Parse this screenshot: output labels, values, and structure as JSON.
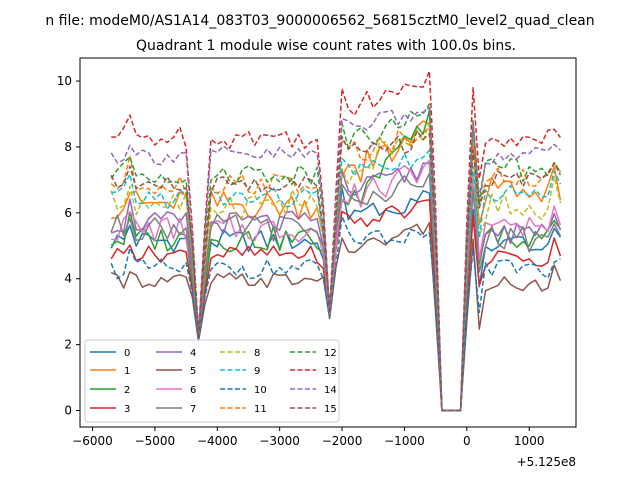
{
  "chart_data": {
    "type": "line",
    "suptitle": "n file: modeM0/AS1A14_083T03_9000006562_56815cztM0_level2_quad_clean",
    "title": "Quadrant 1 module wise count rates with 100.0s bins.",
    "xlabel": "",
    "ylabel": "",
    "offset_label": "+5.125e8",
    "xlim": [
      -6200,
      1750
    ],
    "ylim": [
      -0.5,
      10.7
    ],
    "xticks": [
      -6000,
      -5000,
      -4000,
      -3000,
      -2000,
      -1000,
      0,
      1000
    ],
    "xtick_labels": [
      "−6000",
      "−5000",
      "−4000",
      "−3000",
      "−2000",
      "−1000",
      "0",
      "1000"
    ],
    "yticks": [
      0,
      2,
      4,
      6,
      8,
      10
    ],
    "ytick_labels": [
      "0",
      "2",
      "4",
      "6",
      "8",
      "10"
    ],
    "legend_position": "lower-left",
    "x_start": -5700,
    "x_step": 100,
    "n_points": 73,
    "dips": [
      {
        "index": 14,
        "value": 2.1,
        "depth": 0.45
      },
      {
        "index": 35,
        "value": 2.8,
        "depth": 0.45
      }
    ],
    "gap": {
      "start_index": 53,
      "end_index": 56,
      "value": 0
    },
    "series": [
      {
        "name": "0",
        "color": "#1f77b4",
        "dash": false,
        "level": 5.15,
        "amplitude": 0.35,
        "post_level": 5.05,
        "peak": 6.5
      },
      {
        "name": "1",
        "color": "#ff7f0e",
        "dash": false,
        "level": 6.25,
        "amplitude": 0.45,
        "post_level": 6.7,
        "peak": 8.6
      },
      {
        "name": "2",
        "color": "#2ca02c",
        "dash": false,
        "level": 5.2,
        "amplitude": 0.4,
        "post_level": 5.3,
        "peak": 9.0
      },
      {
        "name": "3",
        "color": "#d62728",
        "dash": false,
        "level": 4.75,
        "amplitude": 0.25,
        "post_level": 4.6,
        "peak": 6.3
      },
      {
        "name": "4",
        "color": "#9467bd",
        "dash": false,
        "level": 5.7,
        "amplitude": 0.35,
        "post_level": 5.4,
        "peak": 7.4
      },
      {
        "name": "5",
        "color": "#8c564b",
        "dash": false,
        "level": 3.95,
        "amplitude": 0.25,
        "post_level": 3.85,
        "peak": 5.6
      },
      {
        "name": "6",
        "color": "#e377c2",
        "dash": false,
        "level": 5.5,
        "amplitude": 0.4,
        "post_level": 5.6,
        "peak": 7.5
      },
      {
        "name": "7",
        "color": "#7f7f7f",
        "dash": false,
        "level": 5.55,
        "amplitude": 0.4,
        "post_level": 5.2,
        "peak": 7.1
      },
      {
        "name": "8",
        "color": "#bcbd22",
        "dash": true,
        "level": 6.3,
        "amplitude": 0.45,
        "post_level": 6.2,
        "peak": 8.7
      },
      {
        "name": "9",
        "color": "#17becf",
        "dash": true,
        "level": 6.45,
        "amplitude": 0.35,
        "post_level": 6.6,
        "peak": 7.8
      },
      {
        "name": "10",
        "color": "#1f77b4",
        "dash": true,
        "level": 4.3,
        "amplitude": 0.3,
        "post_level": 4.3,
        "peak": 5.3
      },
      {
        "name": "11",
        "color": "#ff7f0e",
        "dash": true,
        "level": 6.9,
        "amplitude": 0.35,
        "post_level": 7.1,
        "peak": 8.5
      },
      {
        "name": "12",
        "color": "#2ca02c",
        "dash": true,
        "level": 7.2,
        "amplitude": 0.35,
        "post_level": 7.3,
        "peak": 9.2
      },
      {
        "name": "13",
        "color": "#d62728",
        "dash": true,
        "level": 8.3,
        "amplitude": 0.35,
        "post_level": 8.2,
        "peak": 10.2
      },
      {
        "name": "14",
        "color": "#9467bd",
        "dash": true,
        "level": 7.75,
        "amplitude": 0.3,
        "post_level": 7.75,
        "peak": 9.1
      },
      {
        "name": "15",
        "color": "#8c564b",
        "dash": true,
        "level": 6.85,
        "amplitude": 0.3,
        "post_level": 7.0,
        "peak": 8.3
      }
    ]
  }
}
